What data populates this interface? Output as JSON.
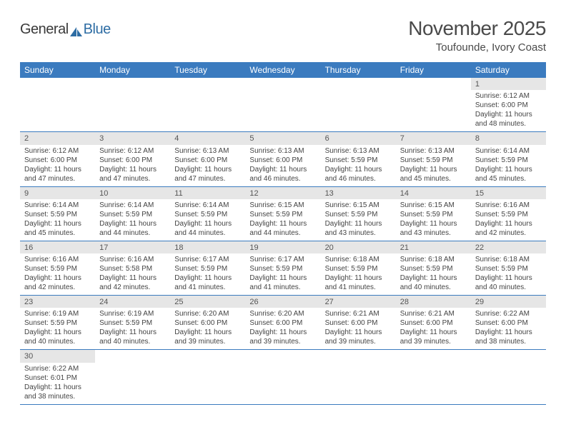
{
  "logo": {
    "text1": "General",
    "text2": "Blue"
  },
  "title": "November 2025",
  "location": "Toufounde, Ivory Coast",
  "colors": {
    "header_bg": "#3b7bbf",
    "header_text": "#ffffff",
    "daynum_bg": "#e6e6e6",
    "rule": "#3b7bbf",
    "text": "#444444",
    "title": "#4a4a4a"
  },
  "day_headers": [
    "Sunday",
    "Monday",
    "Tuesday",
    "Wednesday",
    "Thursday",
    "Friday",
    "Saturday"
  ],
  "weeks": [
    {
      "nums": [
        "",
        "",
        "",
        "",
        "",
        "",
        "1"
      ],
      "cells": [
        null,
        null,
        null,
        null,
        null,
        null,
        {
          "sunrise": "6:12 AM",
          "sunset": "6:00 PM",
          "daylight": "11 hours and 48 minutes."
        }
      ]
    },
    {
      "nums": [
        "2",
        "3",
        "4",
        "5",
        "6",
        "7",
        "8"
      ],
      "cells": [
        {
          "sunrise": "6:12 AM",
          "sunset": "6:00 PM",
          "daylight": "11 hours and 47 minutes."
        },
        {
          "sunrise": "6:12 AM",
          "sunset": "6:00 PM",
          "daylight": "11 hours and 47 minutes."
        },
        {
          "sunrise": "6:13 AM",
          "sunset": "6:00 PM",
          "daylight": "11 hours and 47 minutes."
        },
        {
          "sunrise": "6:13 AM",
          "sunset": "6:00 PM",
          "daylight": "11 hours and 46 minutes."
        },
        {
          "sunrise": "6:13 AM",
          "sunset": "5:59 PM",
          "daylight": "11 hours and 46 minutes."
        },
        {
          "sunrise": "6:13 AM",
          "sunset": "5:59 PM",
          "daylight": "11 hours and 45 minutes."
        },
        {
          "sunrise": "6:14 AM",
          "sunset": "5:59 PM",
          "daylight": "11 hours and 45 minutes."
        }
      ]
    },
    {
      "nums": [
        "9",
        "10",
        "11",
        "12",
        "13",
        "14",
        "15"
      ],
      "cells": [
        {
          "sunrise": "6:14 AM",
          "sunset": "5:59 PM",
          "daylight": "11 hours and 45 minutes."
        },
        {
          "sunrise": "6:14 AM",
          "sunset": "5:59 PM",
          "daylight": "11 hours and 44 minutes."
        },
        {
          "sunrise": "6:14 AM",
          "sunset": "5:59 PM",
          "daylight": "11 hours and 44 minutes."
        },
        {
          "sunrise": "6:15 AM",
          "sunset": "5:59 PM",
          "daylight": "11 hours and 44 minutes."
        },
        {
          "sunrise": "6:15 AM",
          "sunset": "5:59 PM",
          "daylight": "11 hours and 43 minutes."
        },
        {
          "sunrise": "6:15 AM",
          "sunset": "5:59 PM",
          "daylight": "11 hours and 43 minutes."
        },
        {
          "sunrise": "6:16 AM",
          "sunset": "5:59 PM",
          "daylight": "11 hours and 42 minutes."
        }
      ]
    },
    {
      "nums": [
        "16",
        "17",
        "18",
        "19",
        "20",
        "21",
        "22"
      ],
      "cells": [
        {
          "sunrise": "6:16 AM",
          "sunset": "5:59 PM",
          "daylight": "11 hours and 42 minutes."
        },
        {
          "sunrise": "6:16 AM",
          "sunset": "5:58 PM",
          "daylight": "11 hours and 42 minutes."
        },
        {
          "sunrise": "6:17 AM",
          "sunset": "5:59 PM",
          "daylight": "11 hours and 41 minutes."
        },
        {
          "sunrise": "6:17 AM",
          "sunset": "5:59 PM",
          "daylight": "11 hours and 41 minutes."
        },
        {
          "sunrise": "6:18 AM",
          "sunset": "5:59 PM",
          "daylight": "11 hours and 41 minutes."
        },
        {
          "sunrise": "6:18 AM",
          "sunset": "5:59 PM",
          "daylight": "11 hours and 40 minutes."
        },
        {
          "sunrise": "6:18 AM",
          "sunset": "5:59 PM",
          "daylight": "11 hours and 40 minutes."
        }
      ]
    },
    {
      "nums": [
        "23",
        "24",
        "25",
        "26",
        "27",
        "28",
        "29"
      ],
      "cells": [
        {
          "sunrise": "6:19 AM",
          "sunset": "5:59 PM",
          "daylight": "11 hours and 40 minutes."
        },
        {
          "sunrise": "6:19 AM",
          "sunset": "5:59 PM",
          "daylight": "11 hours and 40 minutes."
        },
        {
          "sunrise": "6:20 AM",
          "sunset": "6:00 PM",
          "daylight": "11 hours and 39 minutes."
        },
        {
          "sunrise": "6:20 AM",
          "sunset": "6:00 PM",
          "daylight": "11 hours and 39 minutes."
        },
        {
          "sunrise": "6:21 AM",
          "sunset": "6:00 PM",
          "daylight": "11 hours and 39 minutes."
        },
        {
          "sunrise": "6:21 AM",
          "sunset": "6:00 PM",
          "daylight": "11 hours and 39 minutes."
        },
        {
          "sunrise": "6:22 AM",
          "sunset": "6:00 PM",
          "daylight": "11 hours and 38 minutes."
        }
      ]
    },
    {
      "nums": [
        "30",
        "",
        "",
        "",
        "",
        "",
        ""
      ],
      "cells": [
        {
          "sunrise": "6:22 AM",
          "sunset": "6:01 PM",
          "daylight": "11 hours and 38 minutes."
        },
        null,
        null,
        null,
        null,
        null,
        null
      ]
    }
  ],
  "labels": {
    "sunrise": "Sunrise:",
    "sunset": "Sunset:",
    "daylight": "Daylight:"
  }
}
